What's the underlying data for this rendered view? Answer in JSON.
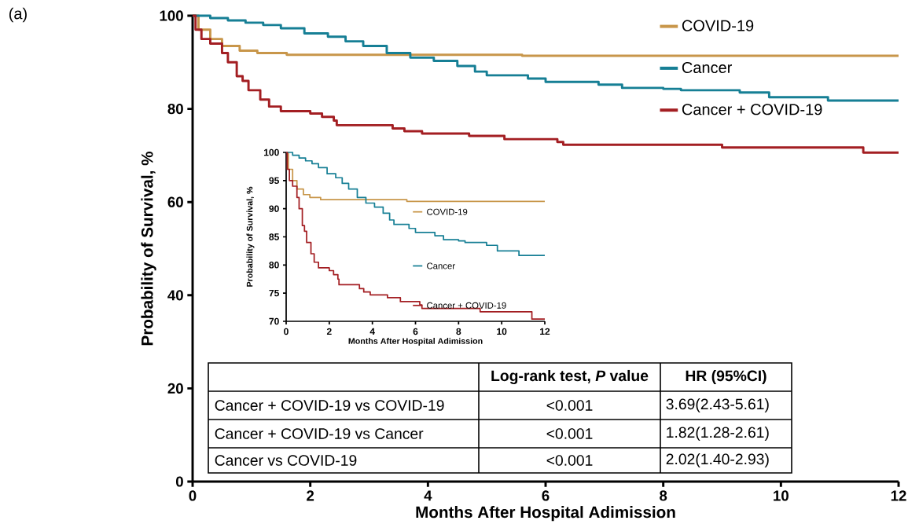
{
  "chart_data": [
    {
      "type": "step",
      "xlabel": "Months After Hospital Adimission",
      "ylabel": "Probability of Survival, %",
      "xlim": [
        0,
        12
      ],
      "ylim": [
        0,
        100
      ],
      "xticks": [
        0,
        2,
        4,
        6,
        8,
        10,
        12
      ],
      "yticks": [
        0,
        20,
        40,
        60,
        80,
        100
      ],
      "legend": "top right",
      "marker": "none",
      "line_style": "solid",
      "annotations": [
        "(a)",
        "Log-rank test, *P* value",
        "HR (95%CI)",
        "Cancer + COVID-19 vs COVID-19",
        "<0.001",
        "3.69(2.43-5.61)",
        "Cancer + COVID-19 vs Cancer",
        "<0.001",
        "1.82(1.28-2.61)",
        "Cancer vs COVID-19",
        "<0.001",
        "2.02(1.40-2.93)"
      ],
      "series": [
        {
          "name": "COVID-19",
          "color": "#c8964a",
          "x": [
            0,
            0.1,
            0.3,
            0.5,
            0.8,
            1.1,
            1.6,
            5.6,
            12
          ],
          "values": [
            100,
            97,
            95,
            93.5,
            92.5,
            92,
            91.6,
            91.4,
            91.4
          ]
        },
        {
          "name": "Cancer",
          "color": "#167f95",
          "x": [
            0,
            0.3,
            0.6,
            0.9,
            1.2,
            1.5,
            1.9,
            2.3,
            2.6,
            2.9,
            3.3,
            3.7,
            4.1,
            4.5,
            4.8,
            5.0,
            5.7,
            6.0,
            6.9,
            7.3,
            8.0,
            8.3,
            9.3,
            9.8,
            10.8,
            12
          ],
          "values": [
            100,
            99.5,
            99,
            98.5,
            98,
            97.3,
            96.2,
            95.5,
            94.5,
            93.5,
            92,
            91,
            90.3,
            89.2,
            88,
            87.2,
            86.5,
            85.8,
            85.2,
            84.5,
            84.3,
            84,
            83.5,
            82.5,
            81.8,
            81.8
          ]
        },
        {
          "name": "Cancer + COVID-19",
          "color": "#a31e22",
          "x": [
            0,
            0.05,
            0.15,
            0.3,
            0.5,
            0.6,
            0.75,
            0.85,
            0.95,
            1.15,
            1.3,
            1.5,
            2.0,
            2.2,
            2.4,
            2.45,
            3.4,
            3.6,
            3.9,
            4.7,
            5.3,
            6.2,
            6.3,
            9.0,
            11.4,
            12
          ],
          "values": [
            100,
            97,
            95,
            94,
            92,
            90,
            87,
            86,
            84,
            82,
            80.5,
            79.5,
            79,
            78.3,
            77.5,
            76.5,
            75.8,
            75.2,
            74.7,
            74.2,
            73.5,
            72.9,
            72.3,
            71.7,
            70.6,
            70.6
          ]
        }
      ]
    },
    {
      "type": "step",
      "xlabel": "Months After Hospital Adimission",
      "ylabel": "Probability of Survival, %",
      "xlim": [
        0,
        12
      ],
      "ylim": [
        70,
        100
      ],
      "xticks": [
        0,
        2,
        4,
        6,
        8,
        10,
        12
      ],
      "yticks": [
        70,
        75,
        80,
        85,
        90,
        95,
        100
      ],
      "legend": "right",
      "marker": "none",
      "line_style": "solid",
      "series": [
        {
          "name": "COVID-19",
          "color": "#c8964a",
          "x": [
            0,
            0.1,
            0.3,
            0.5,
            0.8,
            1.1,
            1.6,
            5.6,
            12
          ],
          "values": [
            100,
            97,
            95,
            93.5,
            92.5,
            92,
            91.6,
            91.3,
            91.3
          ]
        },
        {
          "name": "Cancer",
          "color": "#167f95",
          "x": [
            0,
            0.3,
            0.6,
            0.9,
            1.2,
            1.5,
            1.9,
            2.3,
            2.6,
            2.9,
            3.3,
            3.7,
            4.1,
            4.5,
            4.8,
            5.0,
            5.7,
            6.0,
            6.9,
            7.3,
            8.0,
            8.3,
            9.3,
            9.8,
            10.8,
            12
          ],
          "values": [
            100,
            99.5,
            99,
            98.5,
            98,
            97.3,
            96.2,
            95.5,
            94.5,
            93.5,
            92,
            91,
            90.3,
            89.2,
            88,
            87.2,
            86.5,
            85.8,
            85.2,
            84.5,
            84.3,
            84,
            83.5,
            82.5,
            81.7,
            81.7
          ]
        },
        {
          "name": "Cancer + COVID-19",
          "color": "#a31e22",
          "x": [
            0,
            0.05,
            0.15,
            0.3,
            0.5,
            0.6,
            0.75,
            0.85,
            0.95,
            1.15,
            1.3,
            1.5,
            2.0,
            2.2,
            2.4,
            2.45,
            3.4,
            3.6,
            3.9,
            4.7,
            5.3,
            6.2,
            6.3,
            9.0,
            11.4,
            12
          ],
          "values": [
            100,
            97,
            95,
            94,
            92,
            90,
            87,
            86,
            84,
            82,
            80.5,
            79.5,
            79,
            78.3,
            77.5,
            76.5,
            75.8,
            75.2,
            74.7,
            74.2,
            73.5,
            72.9,
            72.3,
            71.7,
            70.4,
            70.4
          ]
        }
      ]
    }
  ]
}
